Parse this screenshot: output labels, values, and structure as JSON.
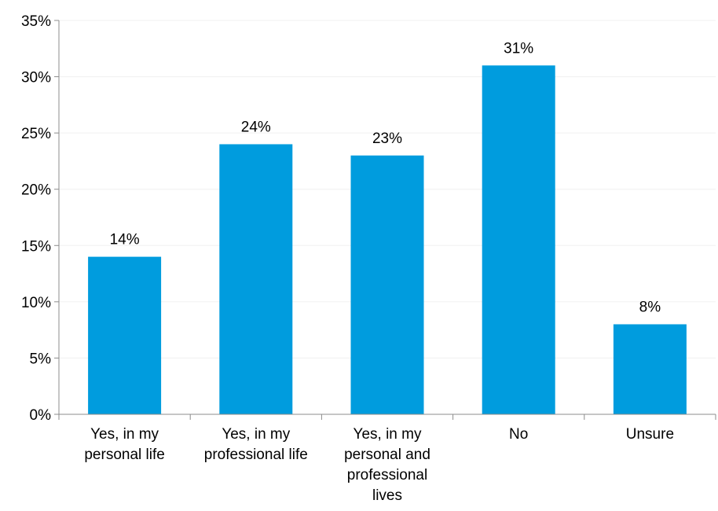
{
  "chart_data": {
    "type": "bar",
    "categories": [
      [
        "Yes, in my",
        "personal life"
      ],
      [
        "Yes, in my",
        "professional life"
      ],
      [
        "Yes, in my",
        "personal and",
        "professional",
        "lives"
      ],
      [
        "No"
      ],
      [
        "Unsure"
      ]
    ],
    "values": [
      14,
      24,
      23,
      31,
      8
    ],
    "data_labels": [
      "14%",
      "24%",
      "23%",
      "31%",
      "8%"
    ],
    "ylim": [
      0,
      35
    ],
    "y_ticks": [
      0,
      5,
      10,
      15,
      20,
      25,
      30,
      35
    ],
    "y_tick_labels": [
      "0%",
      "5%",
      "10%",
      "15%",
      "20%",
      "25%",
      "30%",
      "35%"
    ],
    "title": "",
    "xlabel": "",
    "ylabel": "",
    "grid": true,
    "legend": "none",
    "colors": {
      "bar": "#009CDE",
      "grid": "#F0F0F0",
      "axis": "#8C8C8C",
      "text": "#000000"
    }
  }
}
